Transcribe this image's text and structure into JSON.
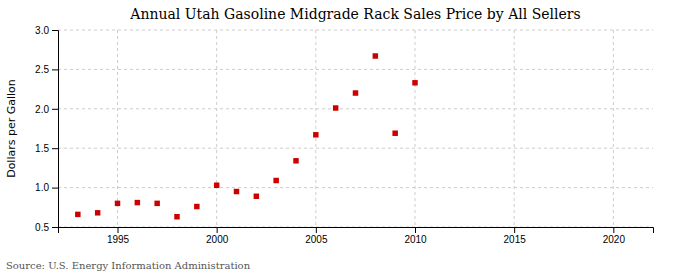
{
  "chart_data": {
    "type": "scatter",
    "title": "Annual Utah Gasoline Midgrade Rack Sales Price by All Sellers",
    "ylabel": "Dollars per Gallon",
    "source": "Source: U.S. Energy Information Administration",
    "x": [
      1993,
      1994,
      1995,
      1996,
      1997,
      1998,
      1999,
      2000,
      2001,
      2002,
      2003,
      2004,
      2005,
      2006,
      2007,
      2008,
      2009,
      2010
    ],
    "values": [
      0.66,
      0.68,
      0.8,
      0.81,
      0.8,
      0.63,
      0.76,
      1.03,
      0.95,
      0.89,
      1.09,
      1.34,
      1.67,
      2.01,
      2.2,
      2.67,
      1.69,
      2.33
    ],
    "color": "#cc0000",
    "marker": "square",
    "xlim": [
      1992,
      2022
    ],
    "ylim": [
      0.5,
      3.0
    ],
    "xticks": [
      1995,
      2000,
      2005,
      2010,
      2015,
      2020
    ],
    "yticks": [
      0.5,
      {
        "value": 1.0,
        "label": "1.0"
      },
      1.5,
      {
        "value": 2.0,
        "label": "2.0"
      },
      2.5,
      {
        "value": 3.0,
        "label": "3.0"
      }
    ],
    "grid": true
  }
}
